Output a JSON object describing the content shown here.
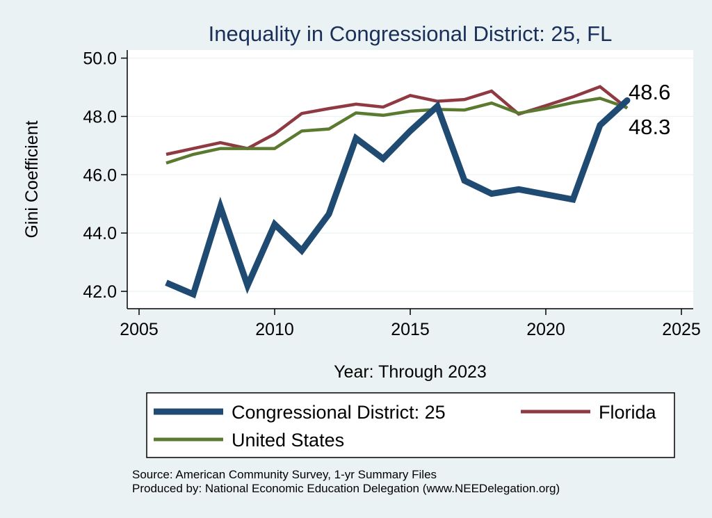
{
  "chart_data": {
    "type": "line",
    "title": "Inequality in Congressional District:  25, FL",
    "xlabel": "Year: Through 2023",
    "ylabel": "Gini Coefficient",
    "xlim": [
      2005,
      2025
    ],
    "ylim": [
      41.5,
      50.3
    ],
    "xticks": [
      2005,
      2010,
      2015,
      2020,
      2025
    ],
    "xtick_labels": [
      "2005",
      "2010",
      "2015",
      "2020",
      "2025"
    ],
    "yticks": [
      42,
      44,
      46,
      48,
      50
    ],
    "ytick_labels": [
      "42.0",
      "44.0",
      "46.0",
      "48.0",
      "50.0"
    ],
    "grid": true,
    "series": [
      {
        "name": "Congressional District:  25",
        "color": "#1f4a72",
        "x": [
          2006,
          2007,
          2008,
          2009,
          2010,
          2011,
          2012,
          2013,
          2014,
          2015,
          2016,
          2017,
          2018,
          2019,
          2021,
          2022,
          2023
        ],
        "values": [
          42.3,
          41.9,
          44.9,
          42.2,
          44.3,
          43.4,
          44.65,
          47.25,
          46.55,
          47.5,
          48.35,
          45.8,
          45.35,
          45.5,
          45.15,
          47.7,
          48.55
        ]
      },
      {
        "name": "Florida",
        "color": "#8f3a43",
        "x": [
          2006,
          2007,
          2008,
          2009,
          2010,
          2011,
          2012,
          2013,
          2014,
          2015,
          2016,
          2017,
          2018,
          2019,
          2020,
          2021,
          2022,
          2023
        ],
        "values": [
          46.7,
          46.9,
          47.1,
          46.9,
          47.4,
          48.1,
          48.27,
          48.42,
          48.32,
          48.72,
          48.52,
          48.58,
          48.87,
          48.08,
          48.37,
          48.67,
          49.02,
          48.28
        ]
      },
      {
        "name": "United States",
        "color": "#5a7a2f",
        "x": [
          2006,
          2007,
          2008,
          2009,
          2010,
          2011,
          2012,
          2013,
          2014,
          2015,
          2016,
          2017,
          2018,
          2019,
          2020,
          2021,
          2022,
          2023
        ],
        "values": [
          46.4,
          46.7,
          46.9,
          46.9,
          46.9,
          47.5,
          47.57,
          48.12,
          48.04,
          48.18,
          48.24,
          48.22,
          48.46,
          48.11,
          48.27,
          48.47,
          48.62,
          48.3
        ]
      }
    ],
    "end_labels": [
      "48.6",
      "48.3"
    ],
    "legend": {
      "placement": "bottom",
      "entries": [
        "Congressional District:  25",
        "Florida",
        "United States"
      ]
    }
  },
  "source": {
    "line1": "Source: American Community Survey, 1-yr Summary Files",
    "line2": "Produced by: National Economic Education Delegation (www.NEEDelegation.org)"
  }
}
